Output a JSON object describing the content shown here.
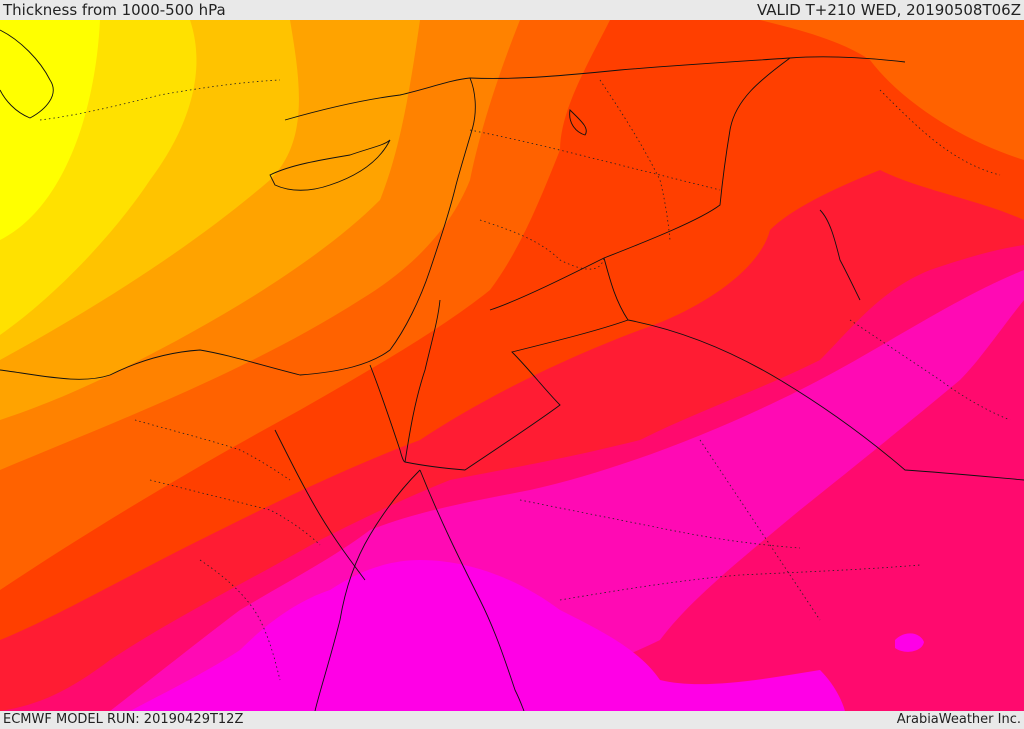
{
  "header": {
    "title": "Thickness from 1000-500 hPa",
    "valid": "VALID T+210 WED, 20190508T06Z"
  },
  "footer": {
    "model_run": "ECMWF MODEL RUN: 20190429T12Z",
    "credit": "ArabiaWeather Inc."
  },
  "colors": {
    "band_1": "#ffff00",
    "band_2": "#ffe100",
    "band_3": "#ffc300",
    "band_4": "#ffa300",
    "band_5": "#ff8200",
    "band_6": "#ff6200",
    "band_7": "#ff3f00",
    "band_8": "#ff1c33",
    "band_9": "#ff0a6e",
    "band_10": "#ff0ab4",
    "band_11": "#ff00e6"
  }
}
